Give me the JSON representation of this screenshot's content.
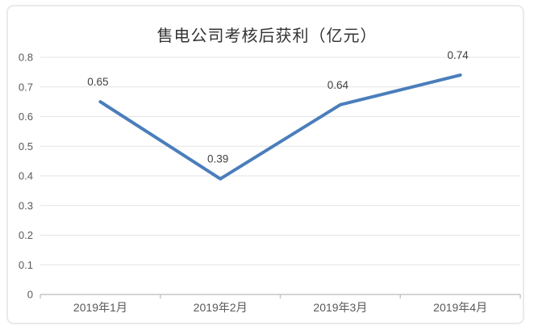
{
  "chart_data": {
    "type": "line",
    "title": "售电公司考核后获利（亿元）",
    "categories": [
      "2019年1月",
      "2019年2月",
      "2019年3月",
      "2019年4月"
    ],
    "values": [
      0.65,
      0.39,
      0.64,
      0.74
    ],
    "data_labels": [
      "0.65",
      "0.39",
      "0.64",
      "0.74"
    ],
    "xlabel": "",
    "ylabel": "",
    "ylim": [
      0,
      0.8
    ],
    "y_ticks": [
      0,
      0.1,
      0.2,
      0.3,
      0.4,
      0.5,
      0.6,
      0.7,
      0.8
    ],
    "y_tick_labels": [
      "0",
      "0.1",
      "0.2",
      "0.3",
      "0.4",
      "0.5",
      "0.6",
      "0.7",
      "0.8"
    ],
    "grid": true,
    "legend": "none"
  },
  "colors": {
    "line": "#4a7ebb",
    "grid": "#e3e3e7",
    "axis": "#c6c6cb",
    "tick_text": "#595959",
    "data_label_text": "#404040",
    "title_text": "#333333",
    "frame_border": "#eaeaea",
    "background": "#ffffff"
  }
}
